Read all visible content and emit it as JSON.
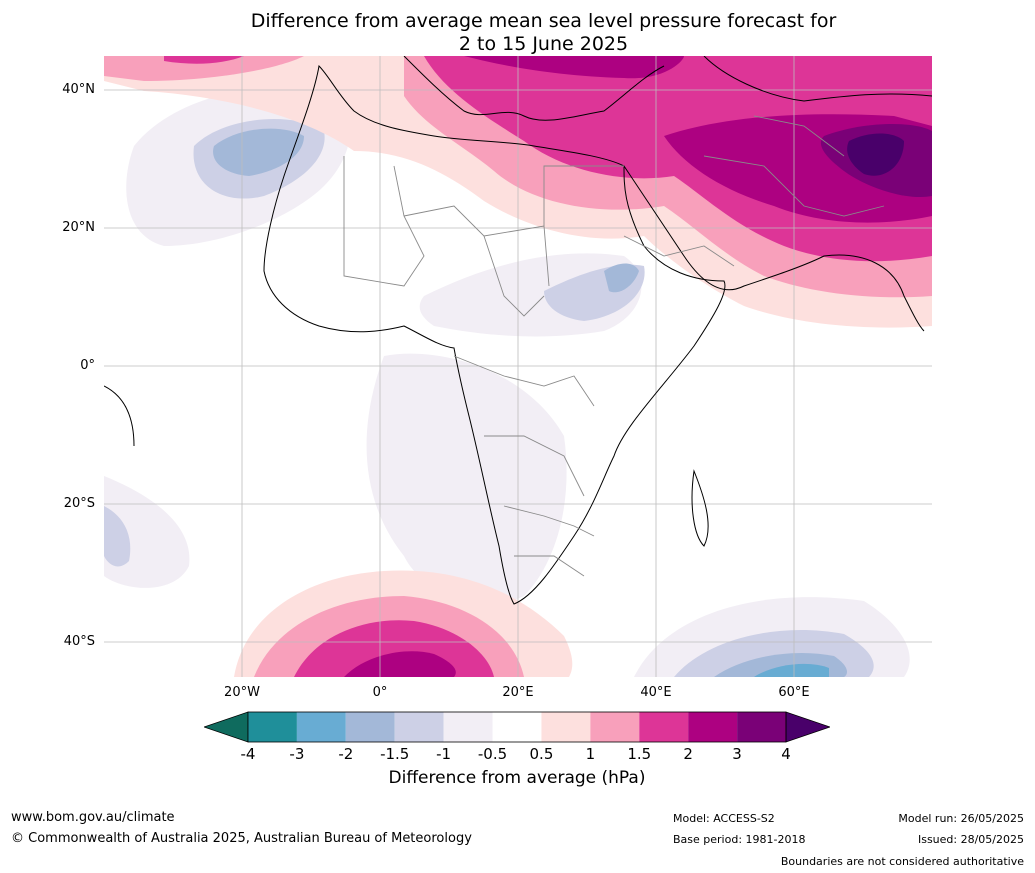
{
  "title": {
    "line1": "Difference from average mean sea level pressure forecast for",
    "line2": "2 to 15 June 2025"
  },
  "map": {
    "region": "Africa and surrounding oceans",
    "lat_labels": [
      "40°N",
      "20°N",
      "0°",
      "20°S",
      "40°S"
    ],
    "lon_labels": [
      "20°W",
      "0°",
      "20°E",
      "40°E",
      "60°E"
    ],
    "gridlines": true
  },
  "colorbar": {
    "label": "Difference from average (hPa)",
    "ticks": [
      "-4",
      "-3",
      "-2",
      "-1.5",
      "-1",
      "-0.5",
      "0.5",
      "1",
      "1.5",
      "2",
      "3",
      "4"
    ],
    "colors": [
      "#0f6b5e",
      "#1f8f9a",
      "#68acd3",
      "#a3b8d8",
      "#cdd0e6",
      "#f2eef5",
      "#ffffff",
      "#fde0de",
      "#f8a0bb",
      "#dd3597",
      "#ad0181",
      "#7a0177",
      "#49006a"
    ]
  },
  "footer": {
    "website": "www.bom.gov.au/climate",
    "copyright": "© Commonwealth of Australia 2025, Australian Bureau of Meteorology",
    "model": "Model: ACCESS-S2",
    "base_period": "Base period: 1981-2018",
    "model_run": "Model run: 26/05/2025",
    "issued": "Issued: 28/05/2025",
    "disclaimer": "Boundaries are not considered authoritative"
  }
}
